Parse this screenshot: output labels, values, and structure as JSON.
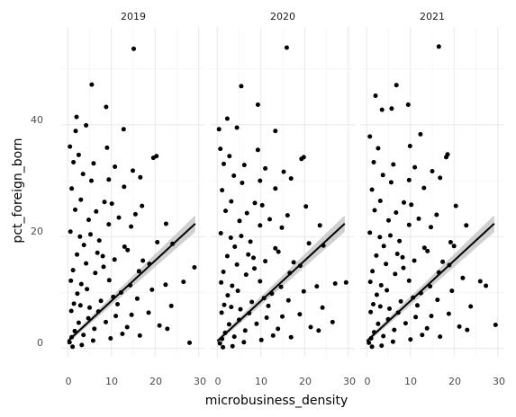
{
  "chart_data": {
    "type": "scatter",
    "facet_by": "year",
    "panels": [
      {
        "label": "2019",
        "points": [
          [
            15.1,
            53.6
          ],
          [
            5.5,
            47.2
          ],
          [
            8.8,
            43.2
          ],
          [
            2.0,
            41.4
          ],
          [
            4.2,
            39.9
          ],
          [
            1.8,
            38.9
          ],
          [
            12.8,
            39.2
          ],
          [
            0.5,
            36.1
          ],
          [
            9.0,
            35.9
          ],
          [
            20.3,
            34.4
          ],
          [
            19.6,
            34.1
          ],
          [
            2.5,
            34.6
          ],
          [
            5.9,
            33.1
          ],
          [
            1.3,
            33.3
          ],
          [
            10.8,
            32.5
          ],
          [
            14.9,
            31.8
          ],
          [
            3.5,
            31.2
          ],
          [
            16.6,
            30.6
          ],
          [
            9.4,
            30.2
          ],
          [
            5.4,
            30.0
          ],
          [
            0.9,
            28.6
          ],
          [
            12.9,
            28.9
          ],
          [
            3.0,
            26.6
          ],
          [
            8.4,
            26.2
          ],
          [
            10.1,
            25.9
          ],
          [
            17.0,
            25.5
          ],
          [
            1.7,
            24.8
          ],
          [
            6.5,
            24.5
          ],
          [
            15.5,
            24.0
          ],
          [
            11.7,
            23.4
          ],
          [
            4.8,
            23.0
          ],
          [
            9.4,
            22.2
          ],
          [
            22.5,
            22.3
          ],
          [
            14.5,
            21.8
          ],
          [
            0.6,
            20.9
          ],
          [
            2.8,
            20.0
          ],
          [
            7.2,
            19.3
          ],
          [
            20.5,
            19.0
          ],
          [
            24.0,
            18.7
          ],
          [
            13.7,
            17.6
          ],
          [
            8.0,
            16.5
          ],
          [
            17.2,
            15.7
          ],
          [
            26.5,
            11.9
          ],
          [
            22.4,
            11.4
          ],
          [
            29.0,
            14.5
          ],
          [
            19.3,
            10.5
          ],
          [
            23.7,
            7.6
          ],
          [
            15.9,
            8.9
          ],
          [
            18.5,
            6.4
          ],
          [
            21.0,
            4.1
          ],
          [
            16.5,
            2.3
          ],
          [
            22.8,
            3.5
          ],
          [
            27.9,
            1.0
          ],
          [
            13.6,
            3.8
          ],
          [
            11.0,
            5.8
          ],
          [
            9.5,
            12.2
          ],
          [
            6.3,
            13.5
          ],
          [
            4.2,
            15.2
          ],
          [
            3.1,
            11.5
          ],
          [
            2.2,
            9.8
          ],
          [
            1.4,
            8.0
          ],
          [
            0.8,
            6.7
          ],
          [
            5.0,
            7.3
          ],
          [
            7.6,
            8.5
          ],
          [
            10.4,
            9.2
          ],
          [
            12.2,
            10.0
          ],
          [
            14.3,
            11.3
          ],
          [
            8.7,
            4.7
          ],
          [
            6.1,
            3.5
          ],
          [
            3.6,
            2.4
          ],
          [
            2.5,
            4.6
          ],
          [
            1.6,
            3.1
          ],
          [
            0.9,
            2.0
          ],
          [
            0.4,
            1.1
          ],
          [
            4.7,
            5.4
          ],
          [
            7.0,
            6.6
          ],
          [
            5.8,
            1.4
          ],
          [
            3.2,
            0.6
          ],
          [
            1.1,
            0.3
          ],
          [
            9.8,
            1.8
          ],
          [
            12.5,
            2.6
          ],
          [
            14.6,
            6.0
          ],
          [
            11.4,
            7.9
          ],
          [
            16.3,
            13.8
          ],
          [
            18.7,
            15.1
          ],
          [
            2.1,
            16.8
          ],
          [
            1.2,
            14.0
          ],
          [
            0.7,
            12.1
          ],
          [
            3.7,
            18.5
          ],
          [
            5.2,
            20.4
          ],
          [
            6.8,
            17.1
          ],
          [
            4.4,
            10.6
          ],
          [
            2.9,
            7.7
          ],
          [
            8.2,
            14.6
          ],
          [
            10.7,
            15.9
          ],
          [
            13.0,
            18.2
          ]
        ]
      },
      {
        "label": "2020",
        "points": [
          [
            15.9,
            53.8
          ],
          [
            5.5,
            46.9
          ],
          [
            9.3,
            43.6
          ],
          [
            2.3,
            41.1
          ],
          [
            4.5,
            39.5
          ],
          [
            0.4,
            39.2
          ],
          [
            13.3,
            38.9
          ],
          [
            0.7,
            35.7
          ],
          [
            9.3,
            35.5
          ],
          [
            19.8,
            34.2
          ],
          [
            19.3,
            33.9
          ],
          [
            2.8,
            34.4
          ],
          [
            6.2,
            32.8
          ],
          [
            1.5,
            33.0
          ],
          [
            11.0,
            32.2
          ],
          [
            15.2,
            31.6
          ],
          [
            3.8,
            30.9
          ],
          [
            16.9,
            30.4
          ],
          [
            9.8,
            30.0
          ],
          [
            5.7,
            29.6
          ],
          [
            1.1,
            28.3
          ],
          [
            13.3,
            28.6
          ],
          [
            3.2,
            26.3
          ],
          [
            8.6,
            26.0
          ],
          [
            10.3,
            25.6
          ],
          [
            20.3,
            25.4
          ],
          [
            1.9,
            24.6
          ],
          [
            6.8,
            24.2
          ],
          [
            16.1,
            23.8
          ],
          [
            12.0,
            23.1
          ],
          [
            5.1,
            22.8
          ],
          [
            9.8,
            22.0
          ],
          [
            23.5,
            22.0
          ],
          [
            14.8,
            21.6
          ],
          [
            0.8,
            20.6
          ],
          [
            3.1,
            19.8
          ],
          [
            7.6,
            19.1
          ],
          [
            21.0,
            18.8
          ],
          [
            24.3,
            18.4
          ],
          [
            14.0,
            17.3
          ],
          [
            8.3,
            16.2
          ],
          [
            17.5,
            15.4
          ],
          [
            27.0,
            11.6
          ],
          [
            22.8,
            11.1
          ],
          [
            29.5,
            11.8
          ],
          [
            19.8,
            10.2
          ],
          [
            24.1,
            7.3
          ],
          [
            16.3,
            8.6
          ],
          [
            18.9,
            6.1
          ],
          [
            21.4,
            3.8
          ],
          [
            16.9,
            2.0
          ],
          [
            23.2,
            3.2
          ],
          [
            26.4,
            4.7
          ],
          [
            13.9,
            3.5
          ],
          [
            11.3,
            5.5
          ],
          [
            9.8,
            12.0
          ],
          [
            6.6,
            13.2
          ],
          [
            4.5,
            15.0
          ],
          [
            3.4,
            11.2
          ],
          [
            2.4,
            9.5
          ],
          [
            1.6,
            7.8
          ],
          [
            1.0,
            6.4
          ],
          [
            5.3,
            7.0
          ],
          [
            7.9,
            8.3
          ],
          [
            10.7,
            9.0
          ],
          [
            12.5,
            9.8
          ],
          [
            14.6,
            11.0
          ],
          [
            9.0,
            4.4
          ],
          [
            6.4,
            3.2
          ],
          [
            3.9,
            2.1
          ],
          [
            2.7,
            4.3
          ],
          [
            1.8,
            2.8
          ],
          [
            1.1,
            1.7
          ],
          [
            0.6,
            0.9
          ],
          [
            5.0,
            5.1
          ],
          [
            7.3,
            6.3
          ],
          [
            6.1,
            1.1
          ],
          [
            3.5,
            0.4
          ],
          [
            1.3,
            0.2
          ],
          [
            10.1,
            1.5
          ],
          [
            12.8,
            2.3
          ],
          [
            14.9,
            5.7
          ],
          [
            11.7,
            7.6
          ],
          [
            16.6,
            13.5
          ],
          [
            19.0,
            14.8
          ],
          [
            2.3,
            16.5
          ],
          [
            1.4,
            13.7
          ],
          [
            0.9,
            11.8
          ],
          [
            4.0,
            18.2
          ],
          [
            5.5,
            20.1
          ],
          [
            7.1,
            16.8
          ],
          [
            4.7,
            10.3
          ],
          [
            3.2,
            7.4
          ],
          [
            8.5,
            14.3
          ],
          [
            11.0,
            15.6
          ],
          [
            13.3,
            17.9
          ]
        ]
      },
      {
        "label": "2021",
        "points": [
          [
            16.5,
            54.0
          ],
          [
            6.8,
            47.1
          ],
          [
            2.0,
            45.2
          ],
          [
            9.5,
            43.6
          ],
          [
            3.5,
            42.7
          ],
          [
            5.7,
            42.9
          ],
          [
            0.7,
            37.9
          ],
          [
            12.3,
            38.3
          ],
          [
            2.6,
            35.8
          ],
          [
            9.9,
            36.2
          ],
          [
            18.5,
            34.7
          ],
          [
            18.2,
            34.2
          ],
          [
            6.1,
            32.9
          ],
          [
            1.6,
            33.3
          ],
          [
            11.0,
            32.4
          ],
          [
            15.0,
            31.7
          ],
          [
            3.7,
            31.0
          ],
          [
            16.8,
            30.5
          ],
          [
            9.7,
            30.1
          ],
          [
            5.6,
            29.7
          ],
          [
            1.2,
            28.4
          ],
          [
            13.1,
            28.7
          ],
          [
            3.1,
            26.4
          ],
          [
            8.5,
            26.1
          ],
          [
            10.2,
            25.7
          ],
          [
            20.4,
            25.5
          ],
          [
            1.8,
            24.7
          ],
          [
            6.7,
            24.3
          ],
          [
            16.0,
            23.9
          ],
          [
            11.9,
            23.2
          ],
          [
            5.0,
            22.9
          ],
          [
            9.7,
            22.1
          ],
          [
            22.8,
            22.0
          ],
          [
            14.7,
            21.7
          ],
          [
            0.7,
            20.7
          ],
          [
            3.0,
            19.9
          ],
          [
            7.5,
            19.2
          ],
          [
            19.2,
            19.0
          ],
          [
            20.0,
            18.3
          ],
          [
            13.9,
            17.4
          ],
          [
            8.2,
            16.3
          ],
          [
            17.4,
            15.5
          ],
          [
            26.0,
            12.0
          ],
          [
            27.3,
            11.2
          ],
          [
            22.0,
            12.6
          ],
          [
            19.5,
            10.3
          ],
          [
            23.8,
            7.5
          ],
          [
            16.2,
            8.7
          ],
          [
            18.8,
            6.2
          ],
          [
            21.2,
            3.9
          ],
          [
            16.8,
            2.1
          ],
          [
            23.0,
            3.3
          ],
          [
            29.5,
            4.2
          ],
          [
            13.8,
            3.6
          ],
          [
            11.2,
            5.6
          ],
          [
            9.7,
            12.1
          ],
          [
            6.5,
            13.3
          ],
          [
            4.4,
            15.1
          ],
          [
            3.3,
            11.3
          ],
          [
            2.3,
            9.6
          ],
          [
            1.5,
            7.9
          ],
          [
            0.9,
            6.5
          ],
          [
            5.2,
            7.1
          ],
          [
            7.8,
            8.4
          ],
          [
            10.6,
            9.1
          ],
          [
            12.4,
            9.9
          ],
          [
            14.5,
            11.1
          ],
          [
            8.9,
            4.5
          ],
          [
            6.3,
            3.3
          ],
          [
            3.8,
            2.2
          ],
          [
            2.6,
            4.4
          ],
          [
            1.7,
            2.9
          ],
          [
            1.0,
            1.8
          ],
          [
            0.5,
            1.0
          ],
          [
            4.9,
            5.2
          ],
          [
            7.2,
            6.4
          ],
          [
            6.0,
            1.2
          ],
          [
            3.4,
            0.5
          ],
          [
            1.2,
            0.3
          ],
          [
            10.0,
            1.6
          ],
          [
            12.7,
            2.4
          ],
          [
            14.8,
            5.8
          ],
          [
            11.6,
            7.7
          ],
          [
            16.5,
            13.6
          ],
          [
            18.9,
            14.9
          ],
          [
            2.2,
            16.6
          ],
          [
            1.3,
            13.8
          ],
          [
            0.8,
            11.9
          ],
          [
            3.9,
            18.3
          ],
          [
            5.4,
            20.2
          ],
          [
            7.0,
            16.9
          ],
          [
            4.6,
            10.4
          ],
          [
            3.1,
            7.5
          ],
          [
            8.4,
            14.4
          ],
          [
            10.9,
            15.7
          ],
          [
            13.2,
            18.0
          ]
        ]
      }
    ],
    "trend": {
      "type": "linear",
      "intercept": 1.3,
      "slope": 0.72,
      "x_range": [
        0,
        29.2
      ],
      "band_halfwidth": [
        0.4,
        1.5
      ],
      "band_color": "#c8c8c8",
      "line_color": "#000000"
    },
    "xlabel": "microbusiness_density",
    "ylabel": "pct_foreign_born",
    "xlim": [
      -1.5,
      31.5
    ],
    "ylim": [
      -1.5,
      57.5
    ],
    "xticks": [
      0,
      10,
      20,
      30
    ],
    "yticks": [
      0,
      20,
      40
    ],
    "grid": true,
    "legend": "none",
    "point_color": "#000000"
  }
}
